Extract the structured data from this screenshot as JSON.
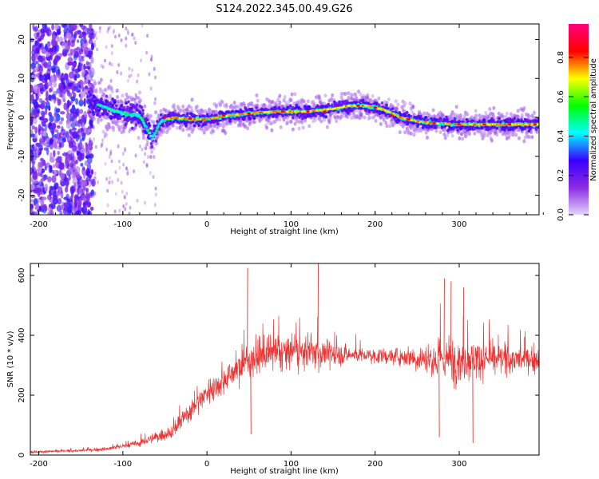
{
  "figure": {
    "title": "S124.2022.345.00.49.G26"
  },
  "chart_data": [
    {
      "type": "heatmap",
      "title": "S124.2022.345.00.49.G26",
      "xlabel": "Height of straight line (km)",
      "ylabel": "Frequency (Hz)",
      "xlim": [
        -210,
        395
      ],
      "ylim": [
        -25,
        24
      ],
      "xticks": [
        -200,
        -100,
        0,
        100,
        200,
        300
      ],
      "yticks": [
        -20,
        -10,
        0,
        10,
        20
      ],
      "colorbar": {
        "label": "Normalized spectral amplitude",
        "range": [
          0.0,
          0.97
        ],
        "ticks": [
          0.0,
          0.2,
          0.4,
          0.6,
          0.8
        ],
        "colormap": [
          "#e2d4fb",
          "#8a2be2",
          "#3a00ff",
          "#00ffff",
          "#00ff00",
          "#ffff00",
          "#ff0000",
          "#ff0080"
        ]
      },
      "ridge": {
        "x": [
          -140,
          -120,
          -100,
          -80,
          -65,
          -55,
          -40,
          -20,
          0,
          20,
          40,
          60,
          80,
          100,
          120,
          150,
          170,
          190,
          210,
          230,
          250,
          270,
          300,
          330,
          360,
          395
        ],
        "y": [
          4.0,
          2.5,
          1.0,
          0.5,
          -5.5,
          -1.0,
          0.0,
          -0.5,
          -0.5,
          0.3,
          0.8,
          1.2,
          1.5,
          1.5,
          1.5,
          2.2,
          3.0,
          3.0,
          2.0,
          0.0,
          -1.0,
          -1.5,
          -1.8,
          -1.8,
          -1.8,
          -1.8
        ],
        "peak_x": [
          -50,
          -20,
          20,
          50,
          90,
          120,
          140,
          180,
          200,
          220,
          240,
          270,
          300,
          330,
          360,
          390
        ],
        "peak_y": [
          0,
          -0.3,
          0.5,
          1.0,
          1.5,
          1.5,
          1.5,
          3.0,
          2.5,
          0.5,
          -0.5,
          -1.5,
          -1.8,
          -1.8,
          -1.8,
          -1.8
        ]
      }
    },
    {
      "type": "line",
      "xlabel": "Height of straight line (km)",
      "ylabel": "SNR (10 * v/v)",
      "xlim": [
        -210,
        395
      ],
      "ylim": [
        0,
        640
      ],
      "xticks": [
        -200,
        -100,
        0,
        100,
        200,
        300
      ],
      "yticks": [
        0,
        200,
        400,
        600
      ],
      "color": "#ee3333",
      "envelope": {
        "x": [
          -210,
          -150,
          -120,
          -100,
          -80,
          -60,
          -40,
          -20,
          0,
          20,
          40,
          60,
          80,
          100,
          120,
          140,
          160,
          180,
          200,
          220,
          240,
          260,
          280,
          300,
          320,
          340,
          360,
          380,
          395
        ],
        "mean": [
          10,
          15,
          20,
          30,
          40,
          60,
          80,
          150,
          210,
          250,
          300,
          330,
          340,
          345,
          345,
          340,
          335,
          335,
          330,
          330,
          330,
          320,
          320,
          320,
          320,
          320,
          320,
          320,
          320
        ],
        "spread": [
          10,
          10,
          15,
          20,
          30,
          40,
          60,
          90,
          100,
          100,
          120,
          140,
          140,
          140,
          130,
          120,
          80,
          60,
          60,
          60,
          80,
          130,
          180,
          180,
          150,
          120,
          110,
          100,
          100
        ]
      },
      "spikes": [
        {
          "x": 48,
          "y": 625
        },
        {
          "x": 132,
          "y": 640
        },
        {
          "x": 282,
          "y": 590
        },
        {
          "x": 290,
          "y": 580
        },
        {
          "x": 305,
          "y": 560
        },
        {
          "x": 52,
          "y": 70
        },
        {
          "x": 276,
          "y": 60
        },
        {
          "x": 316,
          "y": 40
        }
      ]
    }
  ]
}
